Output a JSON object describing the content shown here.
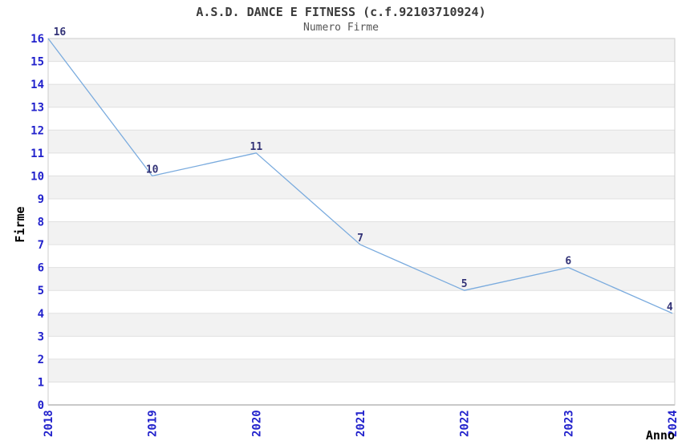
{
  "chart_data": {
    "type": "line",
    "title": "A.S.D. DANCE E FITNESS (c.f.92103710924)",
    "subtitle": "Numero Firme",
    "categories": [
      "2018",
      "2019",
      "2020",
      "2021",
      "2022",
      "2023",
      "2024"
    ],
    "values": [
      16,
      10,
      11,
      7,
      5,
      6,
      4
    ],
    "xlabel": "Anno",
    "ylabel": "Firme",
    "ylim": [
      0,
      16
    ],
    "ytick_step": 1,
    "grid": "horizontal",
    "banded_background": true,
    "legend": "none",
    "colors": {
      "line": "#7aabde",
      "tick_label": "#2222cc",
      "point_label": "#333377",
      "band": "#f2f2f2",
      "gridline": "#e0e0e0",
      "plot_border": "#cccccc",
      "axis_line": "#c9c9c9",
      "title": "#3a3a3a",
      "subtitle": "#555555",
      "axis_title": "#000000"
    }
  }
}
